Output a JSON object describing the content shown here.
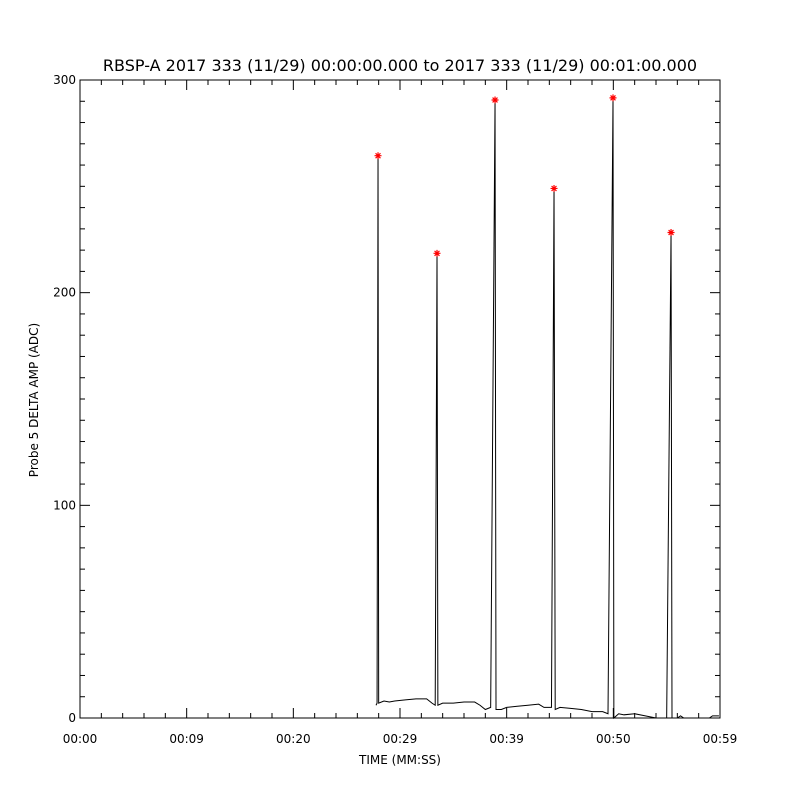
{
  "chart_data": {
    "type": "line",
    "title": "RBSP-A 2017 333 (11/29) 00:00:00.000 to 2017 333 (11/29) 00:01:00.000",
    "x_label": "TIME (MM:SS)",
    "y_label": "Probe 5 DELTA AMP (ADC)",
    "xlim": [
      0,
      60
    ],
    "ylim": [
      0,
      300
    ],
    "xticks": [
      {
        "value": 0,
        "label": "00:00"
      },
      {
        "value": 10,
        "label": "00:09"
      },
      {
        "value": 20,
        "label": "00:20"
      },
      {
        "value": 30,
        "label": "00:29"
      },
      {
        "value": 40,
        "label": "00:39"
      },
      {
        "value": 50,
        "label": "00:50"
      },
      {
        "value": 60,
        "label": "00:59"
      }
    ],
    "yticks": [
      0,
      100,
      200,
      300
    ],
    "series": [
      {
        "color": "#000000",
        "x": [
          27.75,
          27.85,
          27.94,
          28.0,
          28.5,
          29.0,
          29.5,
          30.5,
          31.5,
          32.5,
          33.0,
          33.3,
          33.47,
          33.55,
          34.0,
          35.0,
          36.0,
          37.0,
          37.5,
          38.0,
          38.5,
          38.91,
          39.0,
          39.5,
          40.0,
          41.0,
          42.0,
          43.0,
          43.5,
          44.2,
          44.44,
          44.55,
          45.0,
          46.0,
          47.0,
          48.0,
          49.0,
          49.5,
          49.97,
          50.05,
          50.5,
          51.0,
          52.0,
          53.0,
          54.0,
          55.0,
          55.41,
          55.5,
          56.0,
          56.3,
          56.6,
          59.0,
          59.3,
          59.9
        ],
        "values": [
          6,
          7,
          264,
          7,
          8,
          7.5,
          8,
          8.5,
          9,
          9,
          7,
          6,
          218,
          6,
          7,
          7,
          7.5,
          7.5,
          6,
          4,
          5,
          290,
          4,
          4,
          5,
          5.5,
          6,
          6.5,
          5,
          5,
          249,
          4,
          5,
          4.5,
          4,
          3,
          3,
          2,
          291,
          0,
          2,
          1.5,
          2,
          1,
          0,
          0,
          228,
          0,
          0,
          1,
          0,
          0,
          1,
          1
        ]
      },
      {
        "color": "#ff0000",
        "marker": "star",
        "x": [
          27.94,
          33.47,
          38.91,
          44.44,
          49.97,
          55.41
        ],
        "values": [
          264.4,
          218.5,
          290.6,
          249,
          291.6,
          228.3
        ]
      }
    ]
  }
}
